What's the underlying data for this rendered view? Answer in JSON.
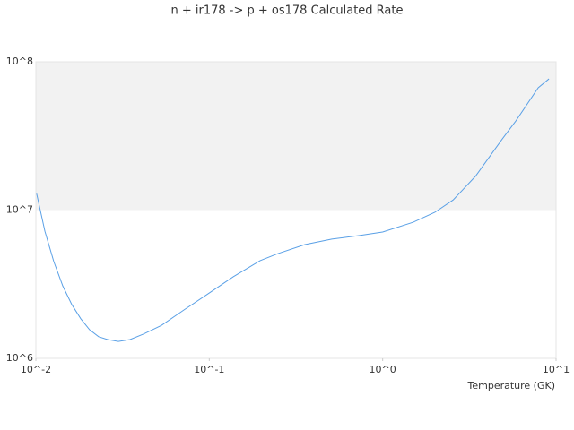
{
  "chart_data": {
    "type": "line",
    "title": "n + ir178 -> p + os178 Calculated Rate",
    "x_label": "Temperature (GK)",
    "log_x": true,
    "log_y": true,
    "xlim": [
      0.01,
      10
    ],
    "ylim": [
      1000000,
      100000000
    ],
    "xticks": [
      {
        "value": 0.01,
        "label": "10^-2"
      },
      {
        "value": 0.1,
        "label": "10^-1"
      },
      {
        "value": 1,
        "label": "10^0"
      },
      {
        "value": 10,
        "label": "10^1"
      }
    ],
    "yticks": [
      {
        "value": 1000000,
        "label": "10^6"
      },
      {
        "value": 10000000,
        "label": "10^7"
      },
      {
        "value": 100000000,
        "label": "10^8"
      }
    ],
    "band_color": "#f2f2f2",
    "series": [
      {
        "color": "#5aa0e6",
        "x": [
          0.0101,
          0.01127,
          0.01268,
          0.01429,
          0.0161,
          0.01815,
          0.0204,
          0.023,
          0.0259,
          0.0299,
          0.0349,
          0.0418,
          0.053,
          0.0714,
          0.1,
          0.1375,
          0.1965,
          0.249,
          0.356,
          0.509,
          0.728,
          1,
          1.5,
          2.0,
          2.55,
          3.43,
          4.9,
          5.86,
          7.89,
          9.1
        ],
        "values": [
          12900000,
          7200000,
          4500000,
          3080000,
          2310000,
          1850000,
          1560000,
          1400000,
          1340000,
          1300000,
          1340000,
          1460000,
          1670000,
          2120000,
          2760000,
          3550000,
          4560000,
          5090000,
          5850000,
          6370000,
          6730000,
          7110000,
          8280000,
          9660000,
          11700000,
          16900000,
          30200000,
          39900000,
          66800000,
          76700000
        ]
      }
    ]
  }
}
